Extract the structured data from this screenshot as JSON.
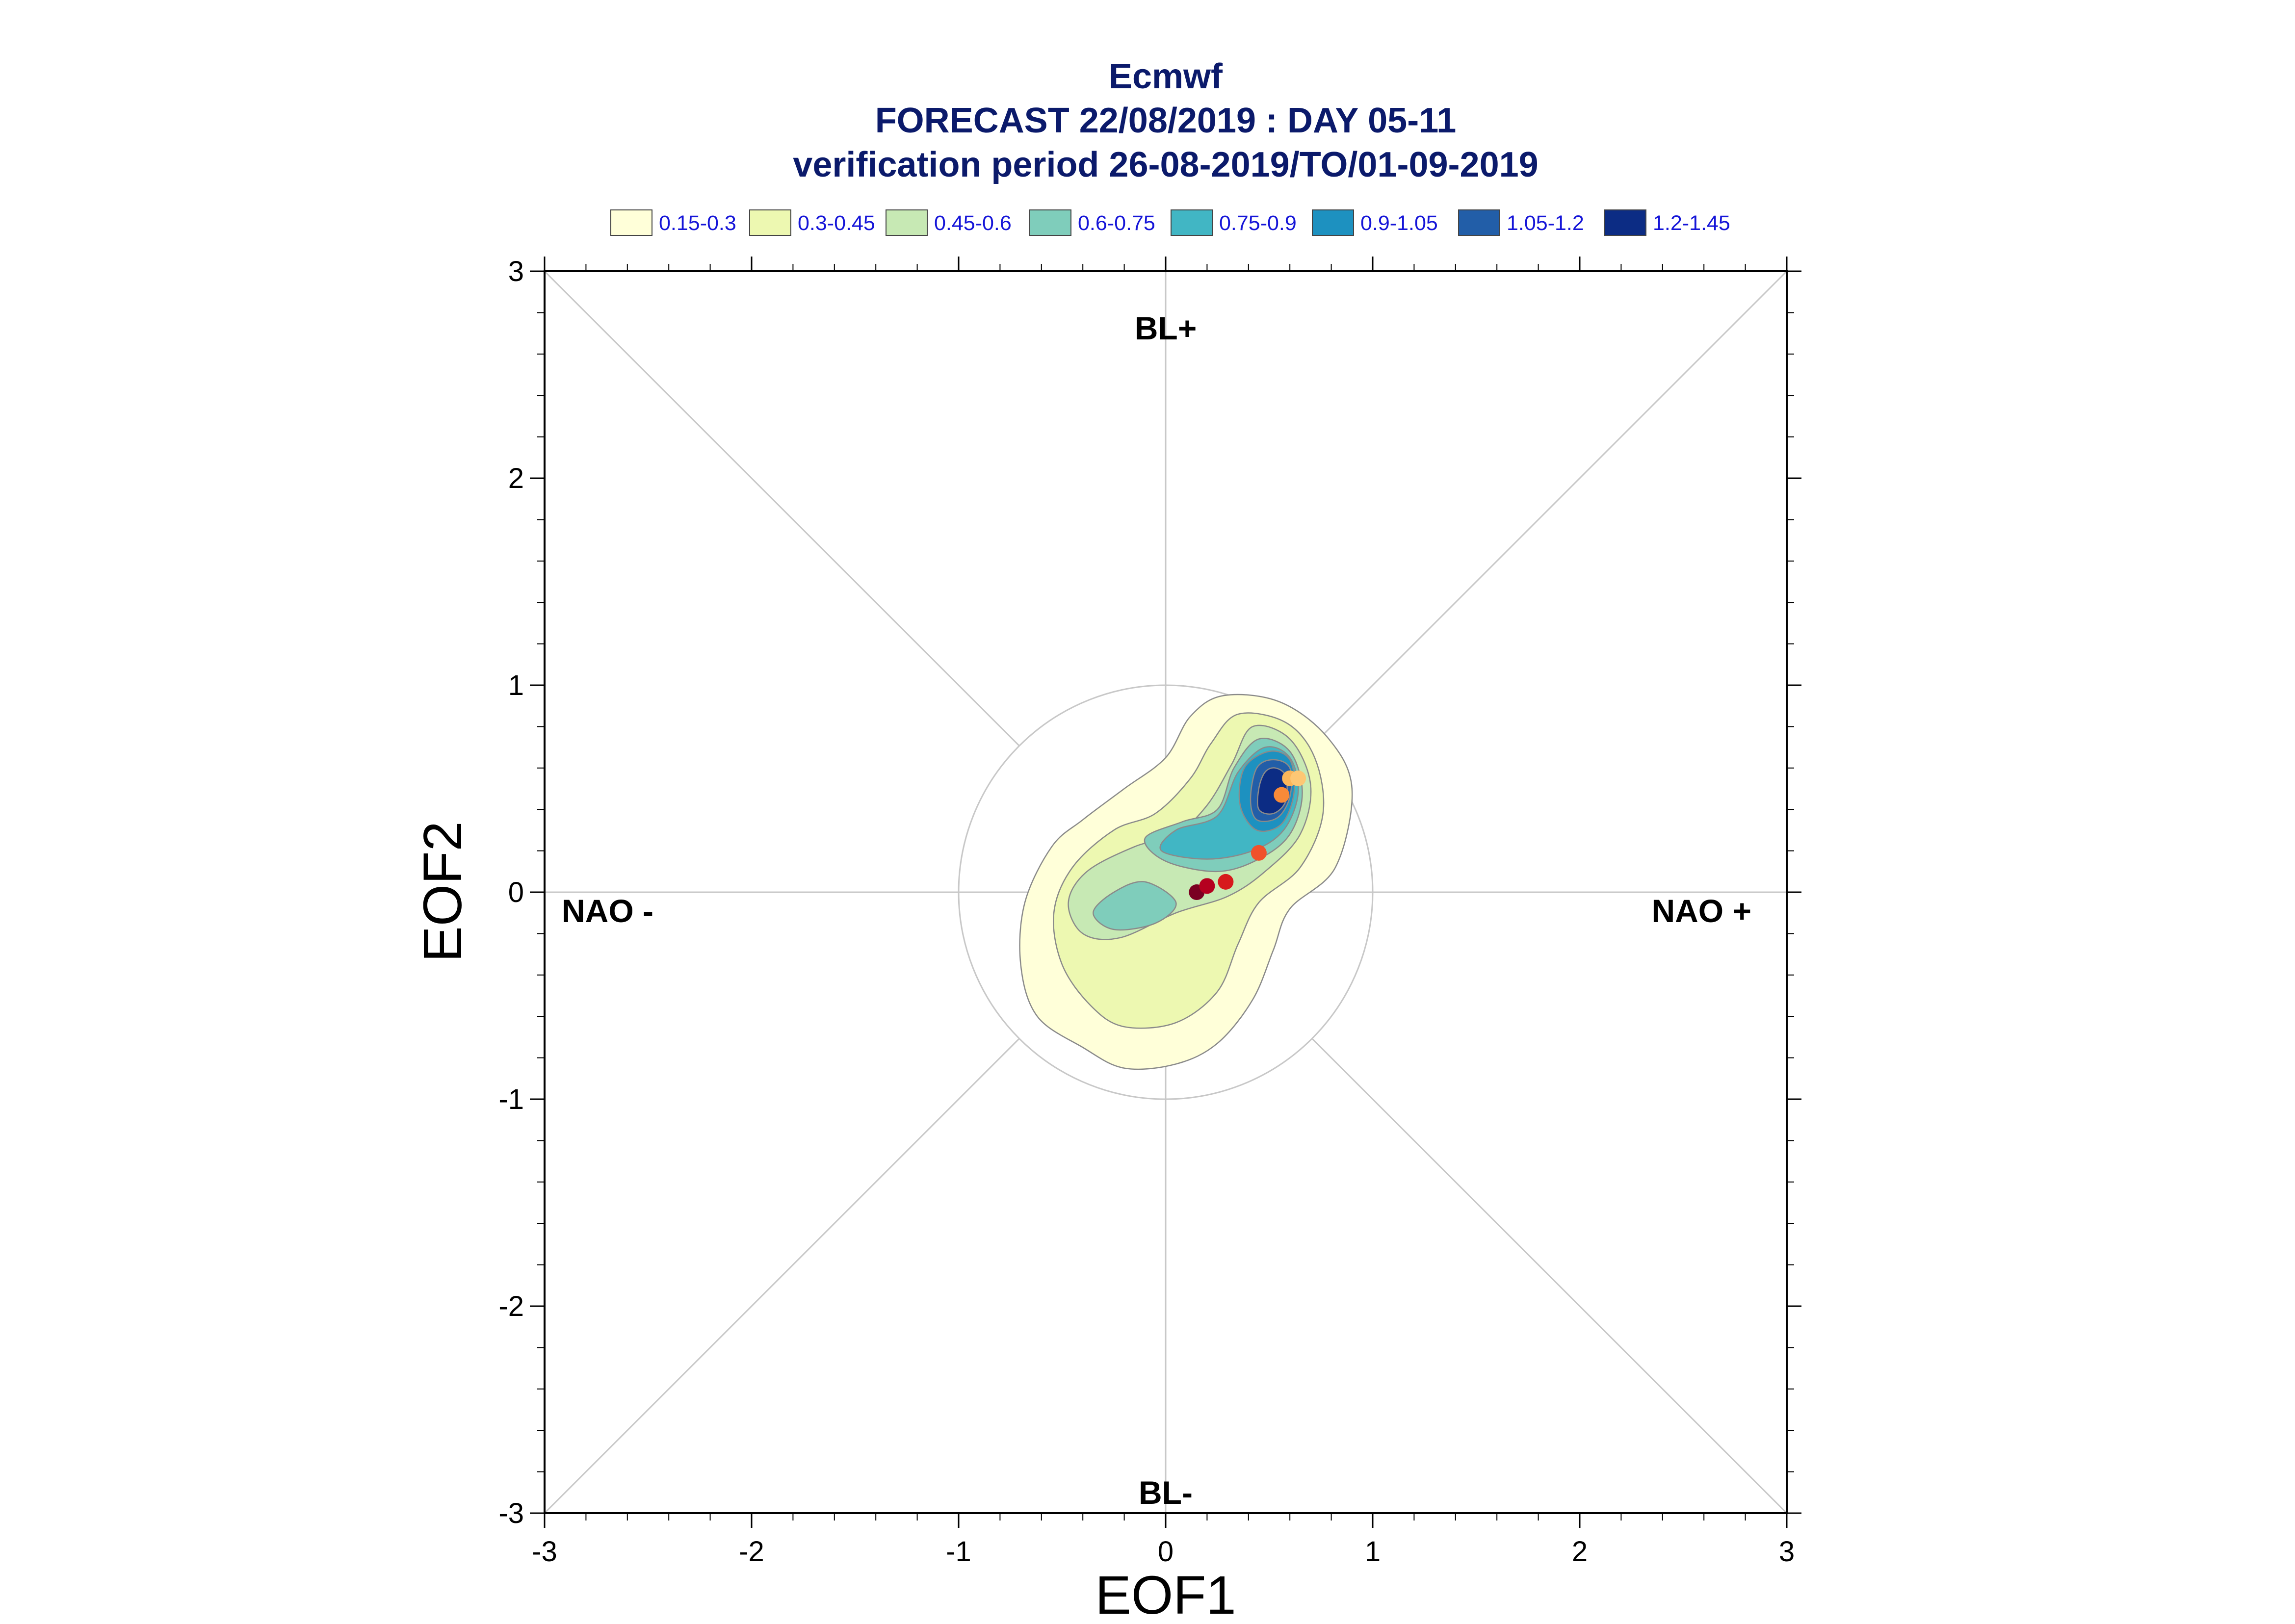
{
  "chart_data": {
    "type": "scatter",
    "title": "Ecmwf",
    "subtitle_lines": [
      "FORECAST 22/08/2019 : DAY 05-11",
      "verification period 26-08-2019/TO/01-09-2019"
    ],
    "xlabel": "EOF1",
    "ylabel": "EOF2",
    "xlim": [
      -3,
      3
    ],
    "ylim": [
      -3,
      3
    ],
    "x_ticks": [
      "-3",
      "-2",
      "-1",
      "0",
      "1",
      "2",
      "3"
    ],
    "y_ticks": [
      "3",
      "2",
      "1",
      "0",
      "-1",
      "-2",
      "-3"
    ],
    "grid": false,
    "unit_circle_radius": 1,
    "regime_labels": {
      "top": "BL+",
      "bottom": "BL-",
      "left": "NAO -",
      "right": "NAO +"
    },
    "legend": {
      "placement": "top",
      "entries": [
        {
          "label": "0.15-0.3",
          "color": "#ffffd9"
        },
        {
          "label": "0.3-0.45",
          "color": "#edf8b1"
        },
        {
          "label": "0.45-0.6",
          "color": "#c7e9b4"
        },
        {
          "label": "0.6-0.75",
          "color": "#7fcdbb"
        },
        {
          "label": "0.75-0.9",
          "color": "#41b6c4"
        },
        {
          "label": "0.9-1.05",
          "color": "#1d91c0"
        },
        {
          "label": "1.05-1.2",
          "color": "#225ea8"
        },
        {
          "label": "1.2-1.45",
          "color": "#0c2c84"
        }
      ]
    },
    "density_contours": [
      {
        "level": "0.15-0.3",
        "color": "#ffffd9",
        "x": [
          0.28,
          0.55,
          0.78,
          0.9,
          0.82,
          0.6,
          0.52,
          0.42,
          0.25,
          0.05,
          -0.2,
          -0.4,
          -0.62,
          -0.7,
          -0.68,
          -0.55,
          -0.4,
          -0.2,
          0.0,
          0.12
        ],
        "y": [
          0.95,
          0.92,
          0.75,
          0.5,
          0.12,
          -0.08,
          -0.28,
          -0.52,
          -0.73,
          -0.83,
          -0.85,
          -0.75,
          -0.6,
          -0.35,
          -0.05,
          0.22,
          0.35,
          0.5,
          0.65,
          0.85
        ]
      },
      {
        "level": "0.3-0.45",
        "color": "#edf8b1",
        "x": [
          0.35,
          0.58,
          0.72,
          0.76,
          0.65,
          0.45,
          0.35,
          0.25,
          0.05,
          -0.2,
          -0.36,
          -0.5,
          -0.54,
          -0.45,
          -0.25,
          -0.05,
          0.12,
          0.22
        ],
        "y": [
          0.86,
          0.82,
          0.65,
          0.38,
          0.12,
          -0.05,
          -0.25,
          -0.48,
          -0.63,
          -0.65,
          -0.55,
          -0.35,
          -0.1,
          0.12,
          0.3,
          0.38,
          0.55,
          0.72
        ]
      },
      {
        "level": "0.45-0.6",
        "color": "#c7e9b4",
        "x": [
          0.42,
          0.6,
          0.7,
          0.65,
          0.48,
          0.3,
          0.05,
          -0.22,
          -0.4,
          -0.47,
          -0.38,
          -0.15,
          0.05,
          0.2,
          0.32
        ],
        "y": [
          0.8,
          0.74,
          0.52,
          0.28,
          0.1,
          -0.02,
          -0.1,
          -0.22,
          -0.2,
          -0.05,
          0.1,
          0.22,
          0.28,
          0.42,
          0.62
        ]
      },
      {
        "level": "0.6-0.75",
        "color": "#7fcdbb",
        "x": [
          0.45,
          0.6,
          0.66,
          0.6,
          0.45,
          0.25,
          0.0,
          -0.1,
          0.08,
          0.25,
          0.33
        ],
        "y": [
          0.74,
          0.68,
          0.48,
          0.28,
          0.16,
          0.1,
          0.15,
          0.26,
          0.34,
          0.4,
          0.6
        ]
      },
      {
        "level": "0.6-0.75",
        "color": "#7fcdbb",
        "x": [
          -0.1,
          0.05,
          -0.05,
          -0.25,
          -0.35,
          -0.25
        ],
        "y": [
          0.05,
          -0.05,
          -0.15,
          -0.18,
          -0.1,
          0.0
        ]
      },
      {
        "level": "0.75-0.9",
        "color": "#41b6c4",
        "x": [
          0.48,
          0.6,
          0.64,
          0.57,
          0.42,
          0.2,
          -0.02,
          0.05,
          0.25,
          0.35
        ],
        "y": [
          0.7,
          0.65,
          0.48,
          0.3,
          0.2,
          0.16,
          0.2,
          0.3,
          0.37,
          0.58
        ]
      },
      {
        "level": "0.9-1.05",
        "color": "#1d91c0",
        "x": [
          0.5,
          0.6,
          0.62,
          0.56,
          0.44,
          0.36,
          0.38
        ],
        "y": [
          0.68,
          0.64,
          0.48,
          0.33,
          0.3,
          0.42,
          0.6
        ]
      },
      {
        "level": "1.05-1.2",
        "color": "#225ea8",
        "x": [
          0.52,
          0.6,
          0.6,
          0.54,
          0.44,
          0.41,
          0.44
        ],
        "y": [
          0.64,
          0.6,
          0.46,
          0.36,
          0.35,
          0.45,
          0.6
        ]
      },
      {
        "level": "1.2-1.45",
        "color": "#0c2c84",
        "x": [
          0.53,
          0.58,
          0.58,
          0.52,
          0.45,
          0.45,
          0.48
        ],
        "y": [
          0.6,
          0.56,
          0.44,
          0.38,
          0.4,
          0.5,
          0.58
        ]
      }
    ],
    "points": [
      {
        "x": 0.15,
        "y": 0.0,
        "color": "#7a0022"
      },
      {
        "x": 0.2,
        "y": 0.03,
        "color": "#b5001f"
      },
      {
        "x": 0.29,
        "y": 0.05,
        "color": "#d7191c"
      },
      {
        "x": 0.45,
        "y": 0.19,
        "color": "#f0512b"
      },
      {
        "x": 0.56,
        "y": 0.47,
        "color": "#f88a38"
      },
      {
        "x": 0.6,
        "y": 0.55,
        "color": "#fbb65a"
      },
      {
        "x": 0.64,
        "y": 0.55,
        "color": "#fdc774"
      }
    ]
  }
}
